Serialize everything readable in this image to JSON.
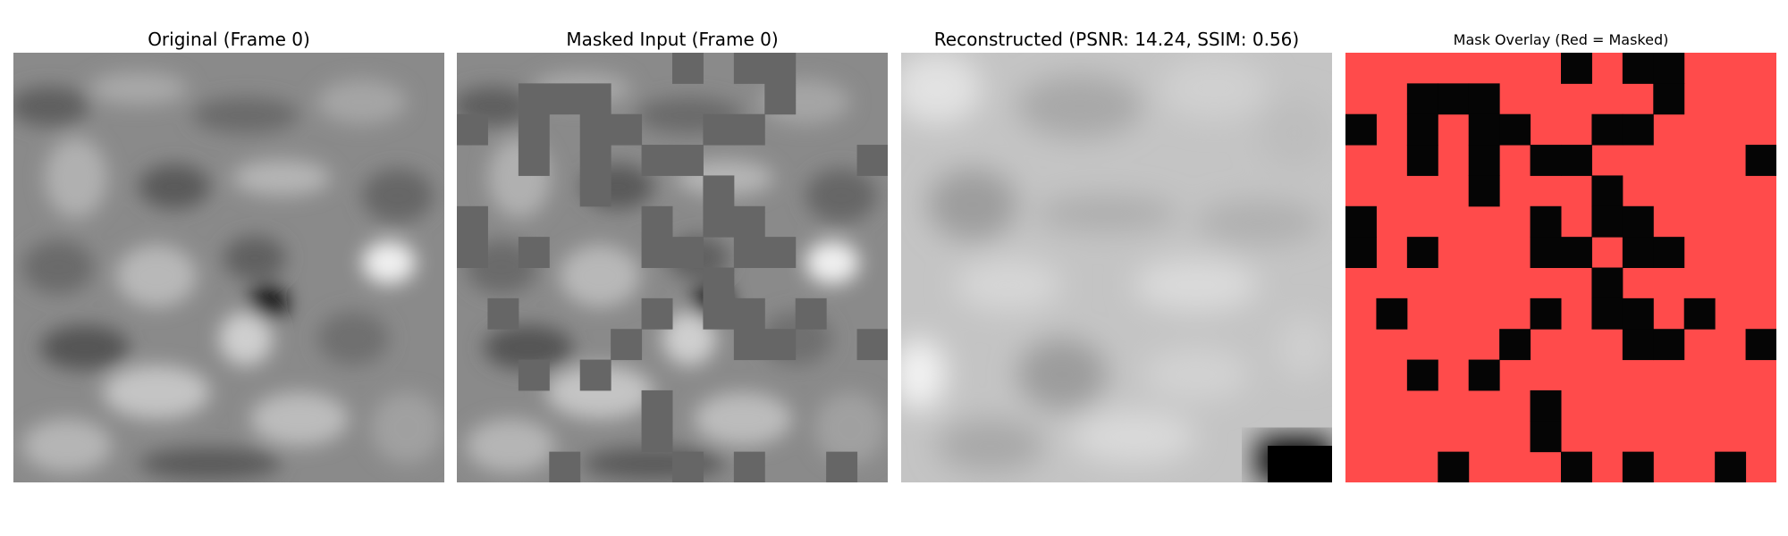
{
  "panels": [
    {
      "title": "Original (Frame 0)"
    },
    {
      "title": "Masked Input (Frame 0)"
    },
    {
      "title": "Reconstructed (PSNR: 14.24, SSIM: 0.56)"
    },
    {
      "title": "Mask Overlay (Red = Masked)"
    }
  ],
  "colors": {
    "masked_red": "#ff4b4b",
    "unmasked_black": "#050505",
    "masked_fill_gray": "#666666"
  },
  "mask_grid": {
    "rows": 14,
    "cols": 14,
    "visible_cells": [
      [
        0,
        7
      ],
      [
        0,
        9
      ],
      [
        0,
        10
      ],
      [
        1,
        2
      ],
      [
        1,
        3
      ],
      [
        1,
        4
      ],
      [
        1,
        10
      ],
      [
        2,
        0
      ],
      [
        2,
        2
      ],
      [
        2,
        4
      ],
      [
        2,
        5
      ],
      [
        2,
        8
      ],
      [
        2,
        9
      ],
      [
        3,
        2
      ],
      [
        3,
        4
      ],
      [
        3,
        6
      ],
      [
        3,
        7
      ],
      [
        3,
        13
      ],
      [
        4,
        4
      ],
      [
        4,
        8
      ],
      [
        5,
        0
      ],
      [
        5,
        6
      ],
      [
        5,
        8
      ],
      [
        5,
        9
      ],
      [
        6,
        0
      ],
      [
        6,
        2
      ],
      [
        6,
        6
      ],
      [
        6,
        7
      ],
      [
        6,
        9
      ],
      [
        6,
        10
      ],
      [
        7,
        8
      ],
      [
        8,
        1
      ],
      [
        8,
        6
      ],
      [
        8,
        8
      ],
      [
        8,
        9
      ],
      [
        8,
        11
      ],
      [
        9,
        5
      ],
      [
        9,
        9
      ],
      [
        9,
        10
      ],
      [
        9,
        13
      ],
      [
        10,
        2
      ],
      [
        10,
        4
      ],
      [
        11,
        6
      ],
      [
        12,
        6
      ],
      [
        13,
        3
      ],
      [
        13,
        7
      ],
      [
        13,
        9
      ],
      [
        13,
        12
      ]
    ]
  }
}
